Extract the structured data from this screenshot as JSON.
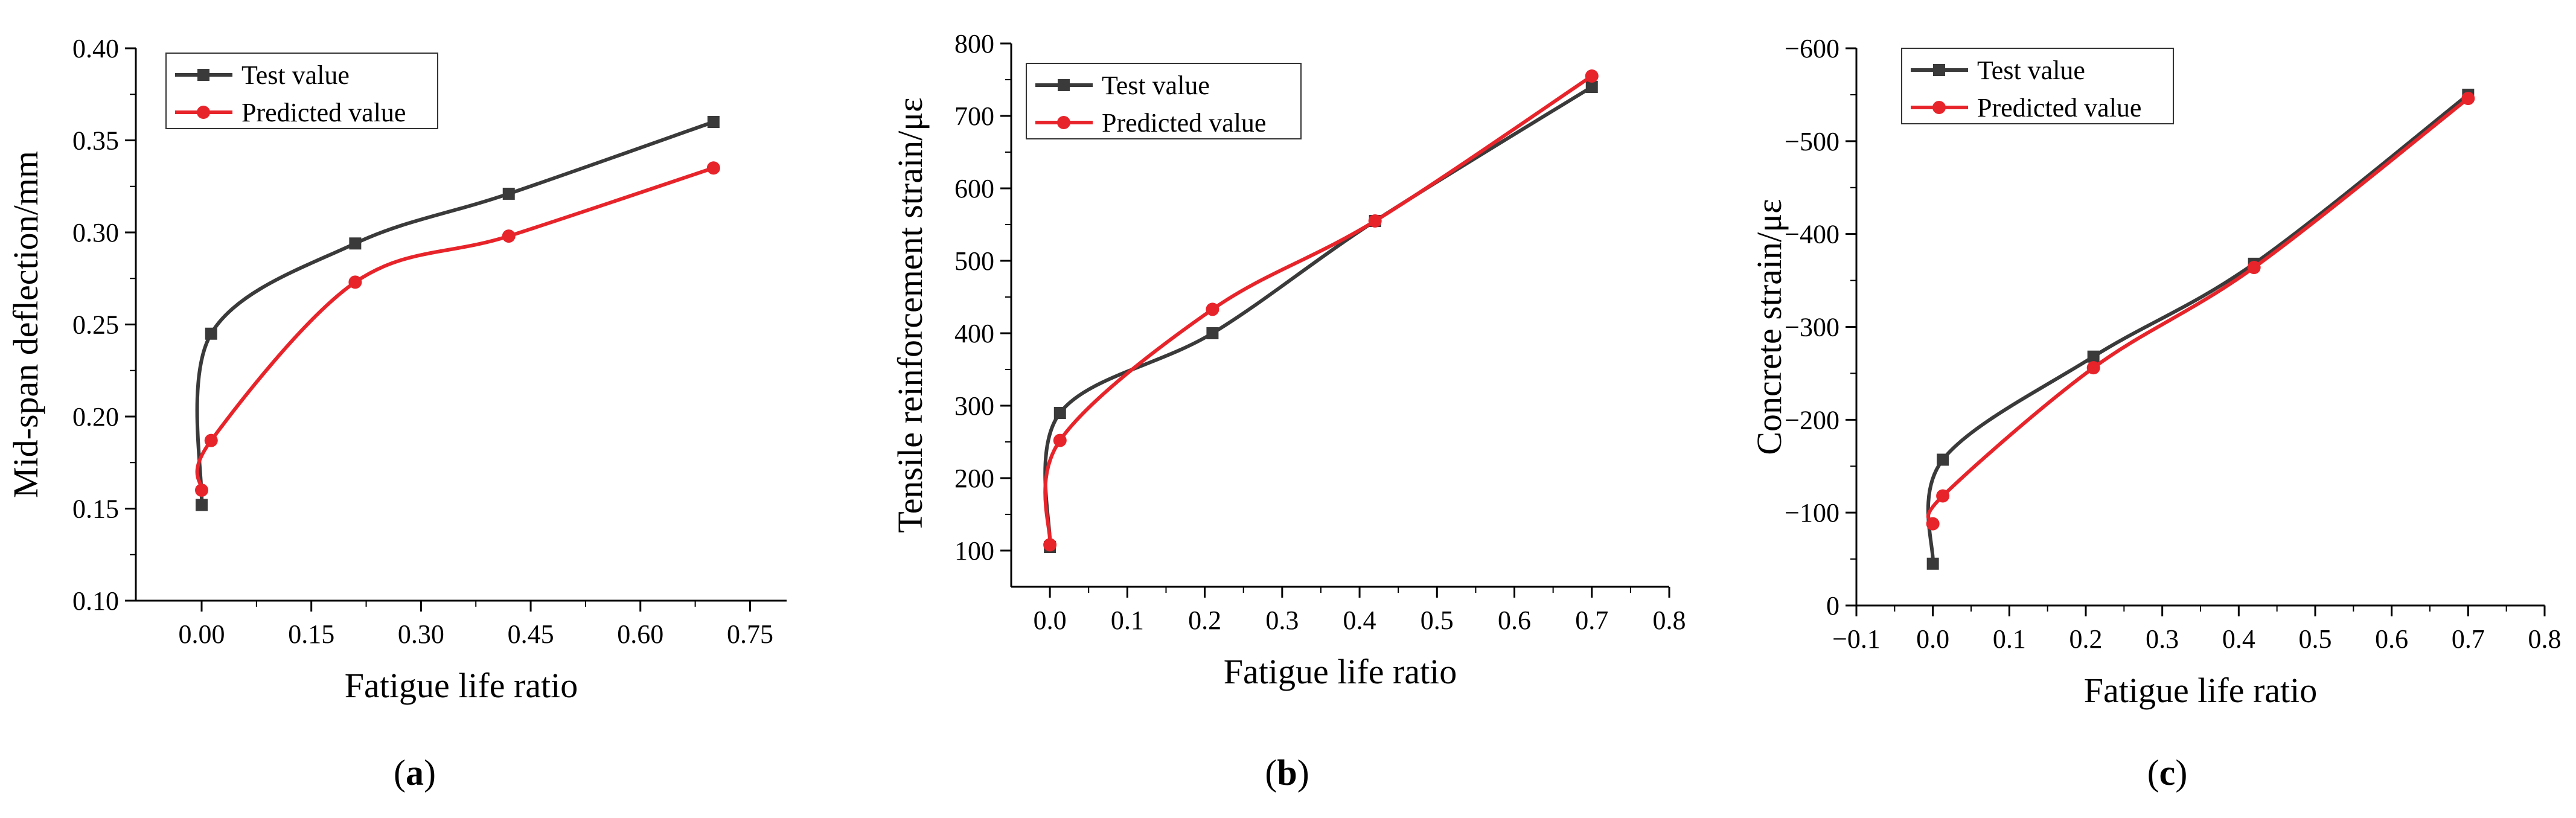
{
  "colors": {
    "test": "#3a3a3a",
    "predicted": "#e8242b",
    "axis": "#000000"
  },
  "chart_data": [
    {
      "panel_label": {
        "pre": "(",
        "letter": "a",
        "post": ")"
      },
      "type": "line",
      "xlabel": "Fatigue life ratio",
      "ylabel": "Mid-span deflection/mm",
      "xlim": [
        -0.09,
        0.8
      ],
      "ylim": [
        0.1,
        0.4
      ],
      "xticks": [
        0.0,
        0.15,
        0.3,
        0.45,
        0.6,
        0.75
      ],
      "xtick_labels": [
        "0.00",
        "0.15",
        "0.30",
        "0.45",
        "0.60",
        "0.75"
      ],
      "yticks": [
        0.1,
        0.15,
        0.2,
        0.25,
        0.3,
        0.35,
        0.4
      ],
      "ytick_labels": [
        "0.10",
        "0.15",
        "0.20",
        "0.25",
        "0.30",
        "0.35",
        "0.40"
      ],
      "legend_position": "top-left",
      "series": [
        {
          "name": "Test value",
          "marker": "square",
          "x": [
            0.0,
            0.013,
            0.21,
            0.42,
            0.7
          ],
          "y": [
            0.152,
            0.245,
            0.294,
            0.321,
            0.36
          ]
        },
        {
          "name": "Predicted value",
          "marker": "circle",
          "x": [
            0.0,
            0.013,
            0.21,
            0.42,
            0.7
          ],
          "y": [
            0.16,
            0.187,
            0.273,
            0.298,
            0.335
          ]
        }
      ]
    },
    {
      "panel_label": {
        "pre": "(",
        "letter": "b",
        "post": ")"
      },
      "type": "line",
      "xlabel": "Fatigue life ratio",
      "ylabel": "Tensile reinforcement strain/με",
      "xlim": [
        -0.05,
        0.8
      ],
      "ylim": [
        50,
        800
      ],
      "xticks": [
        0.0,
        0.1,
        0.2,
        0.3,
        0.4,
        0.5,
        0.6,
        0.7,
        0.8
      ],
      "xtick_labels": [
        "0.0",
        "0.1",
        "0.2",
        "0.3",
        "0.4",
        "0.5",
        "0.6",
        "0.7",
        "0.8"
      ],
      "yticks": [
        100,
        200,
        300,
        400,
        500,
        600,
        700,
        800
      ],
      "ytick_labels": [
        "100",
        "200",
        "300",
        "400",
        "500",
        "600",
        "700",
        "800"
      ],
      "legend_position": "top-left",
      "series": [
        {
          "name": "Test value",
          "marker": "square",
          "x": [
            0.0,
            0.013,
            0.21,
            0.42,
            0.7
          ],
          "y": [
            105,
            290,
            400,
            555,
            740
          ]
        },
        {
          "name": "Predicted value",
          "marker": "circle",
          "x": [
            0.0,
            0.013,
            0.21,
            0.42,
            0.7
          ],
          "y": [
            108,
            252,
            433,
            555,
            755
          ]
        }
      ]
    },
    {
      "panel_label": {
        "pre": "(",
        "letter": "c",
        "post": ")"
      },
      "type": "line",
      "xlabel": "Fatigue life ratio",
      "ylabel": "Concrete strain/με",
      "xlim": [
        -0.1,
        0.8
      ],
      "ylim": [
        0,
        -600
      ],
      "xticks": [
        -0.1,
        0.0,
        0.1,
        0.2,
        0.3,
        0.4,
        0.5,
        0.6,
        0.7,
        0.8
      ],
      "xtick_labels": [
        "−0.1",
        "0.0",
        "0.1",
        "0.2",
        "0.3",
        "0.4",
        "0.5",
        "0.6",
        "0.7",
        "0.8"
      ],
      "yticks": [
        0,
        -100,
        -200,
        -300,
        -400,
        -500,
        -600
      ],
      "ytick_labels": [
        "0",
        "−100",
        "−200",
        "−300",
        "−400",
        "−500",
        "−600"
      ],
      "legend_position": "top-left",
      "series": [
        {
          "name": "Test value",
          "marker": "square",
          "x": [
            0.0,
            0.013,
            0.21,
            0.42,
            0.7
          ],
          "y": [
            -45,
            -157,
            -268,
            -368,
            -550
          ]
        },
        {
          "name": "Predicted value",
          "marker": "circle",
          "x": [
            0.0,
            0.013,
            0.21,
            0.42,
            0.7
          ],
          "y": [
            -88,
            -118,
            -256,
            -364,
            -546
          ]
        }
      ]
    }
  ]
}
